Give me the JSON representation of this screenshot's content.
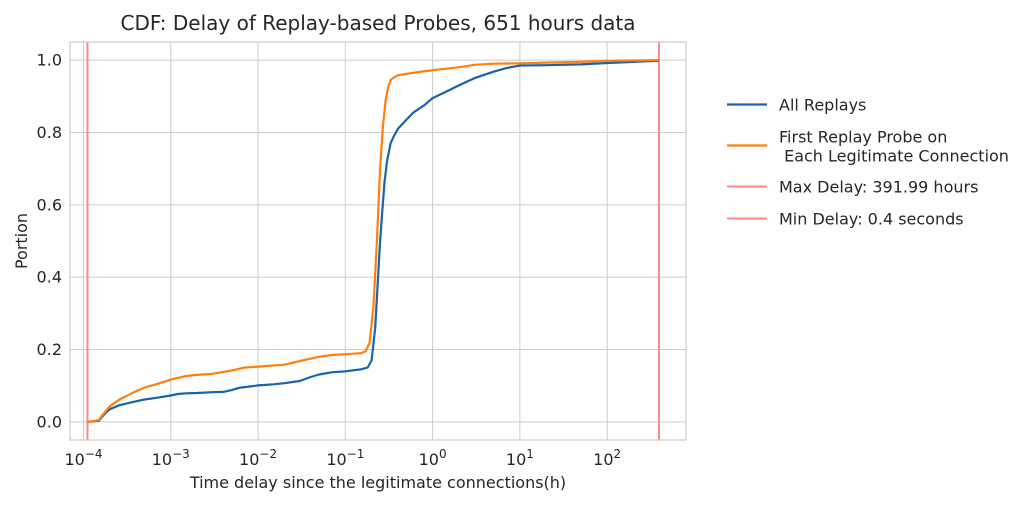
{
  "chart_data": {
    "type": "line",
    "title": "CDF: Delay of Replay-based Probes, 651 hours data",
    "xlabel": "Time delay since the legitimate connections(h)",
    "ylabel": "Portion",
    "xscale": "log",
    "xlim": [
      7e-05,
      800
    ],
    "ylim": [
      -0.05,
      1.05
    ],
    "grid": true,
    "legend_placement": "right",
    "x_ticks": [
      {
        "value": 0.0001,
        "base": "10",
        "exp": "−4"
      },
      {
        "value": 0.001,
        "base": "10",
        "exp": "−3"
      },
      {
        "value": 0.01,
        "base": "10",
        "exp": "−2"
      },
      {
        "value": 0.1,
        "base": "10",
        "exp": "−1"
      },
      {
        "value": 1,
        "base": "10",
        "exp": "0"
      },
      {
        "value": 10,
        "base": "10",
        "exp": "1"
      },
      {
        "value": 100,
        "base": "10",
        "exp": "2"
      }
    ],
    "y_ticks": [
      {
        "value": 0.0,
        "label": "0.0"
      },
      {
        "value": 0.2,
        "label": "0.2"
      },
      {
        "value": 0.4,
        "label": "0.4"
      },
      {
        "value": 0.6,
        "label": "0.6"
      },
      {
        "value": 0.8,
        "label": "0.8"
      },
      {
        "value": 1.0,
        "label": "1.0"
      }
    ],
    "series": [
      {
        "name": "All Replays",
        "color": "#1764ab",
        "x": [
          0.000111,
          0.00015,
          0.00016,
          0.00018,
          0.0002,
          0.00025,
          0.0003,
          0.0004,
          0.0005,
          0.0007,
          0.001,
          0.0012,
          0.0015,
          0.002,
          0.003,
          0.004,
          0.005,
          0.006,
          0.008,
          0.01,
          0.015,
          0.02,
          0.03,
          0.04,
          0.05,
          0.07,
          0.1,
          0.15,
          0.18,
          0.2,
          0.22,
          0.25,
          0.28,
          0.3,
          0.33,
          0.36,
          0.4,
          0.5,
          0.6,
          0.8,
          1.0,
          1.5,
          2,
          3,
          5,
          7,
          10,
          20,
          50,
          100,
          200,
          392
        ],
        "y": [
          0.0,
          0.003,
          0.012,
          0.025,
          0.035,
          0.045,
          0.05,
          0.057,
          0.062,
          0.067,
          0.073,
          0.077,
          0.079,
          0.08,
          0.082,
          0.083,
          0.088,
          0.094,
          0.098,
          0.101,
          0.104,
          0.107,
          0.113,
          0.124,
          0.131,
          0.137,
          0.14,
          0.145,
          0.15,
          0.17,
          0.26,
          0.5,
          0.66,
          0.72,
          0.77,
          0.79,
          0.81,
          0.835,
          0.855,
          0.875,
          0.895,
          0.915,
          0.93,
          0.95,
          0.968,
          0.978,
          0.985,
          0.986,
          0.988,
          0.992,
          0.995,
          0.998
        ]
      },
      {
        "name": "First Replay Probe on\n Each Legitimate Connection",
        "color": "#ff7f0e",
        "x": [
          0.000111,
          0.00015,
          0.00016,
          0.00018,
          0.0002,
          0.00025,
          0.0003,
          0.0004,
          0.0005,
          0.0007,
          0.001,
          0.0015,
          0.002,
          0.003,
          0.005,
          0.007,
          0.01,
          0.02,
          0.03,
          0.05,
          0.07,
          0.1,
          0.15,
          0.17,
          0.19,
          0.21,
          0.23,
          0.25,
          0.27,
          0.29,
          0.31,
          0.33,
          0.36,
          0.4,
          0.5,
          0.7,
          1.0,
          2,
          3,
          5,
          10,
          20,
          50,
          100,
          392
        ],
        "y": [
          0.0,
          0.005,
          0.015,
          0.03,
          0.043,
          0.06,
          0.07,
          0.085,
          0.095,
          0.105,
          0.117,
          0.127,
          0.13,
          0.133,
          0.142,
          0.15,
          0.153,
          0.158,
          0.168,
          0.18,
          0.185,
          0.187,
          0.19,
          0.195,
          0.22,
          0.32,
          0.5,
          0.7,
          0.82,
          0.89,
          0.925,
          0.945,
          0.952,
          0.958,
          0.962,
          0.967,
          0.972,
          0.98,
          0.987,
          0.99,
          0.991,
          0.993,
          0.995,
          0.998,
          1.0
        ]
      }
    ],
    "vlines": [
      {
        "name": "Max Delay: 391.99 hours",
        "x": 391.99,
        "color": "#f98a8a"
      },
      {
        "name": "Min Delay: 0.4 seconds",
        "x": 0.000111,
        "color": "#f98a8a"
      }
    ]
  }
}
